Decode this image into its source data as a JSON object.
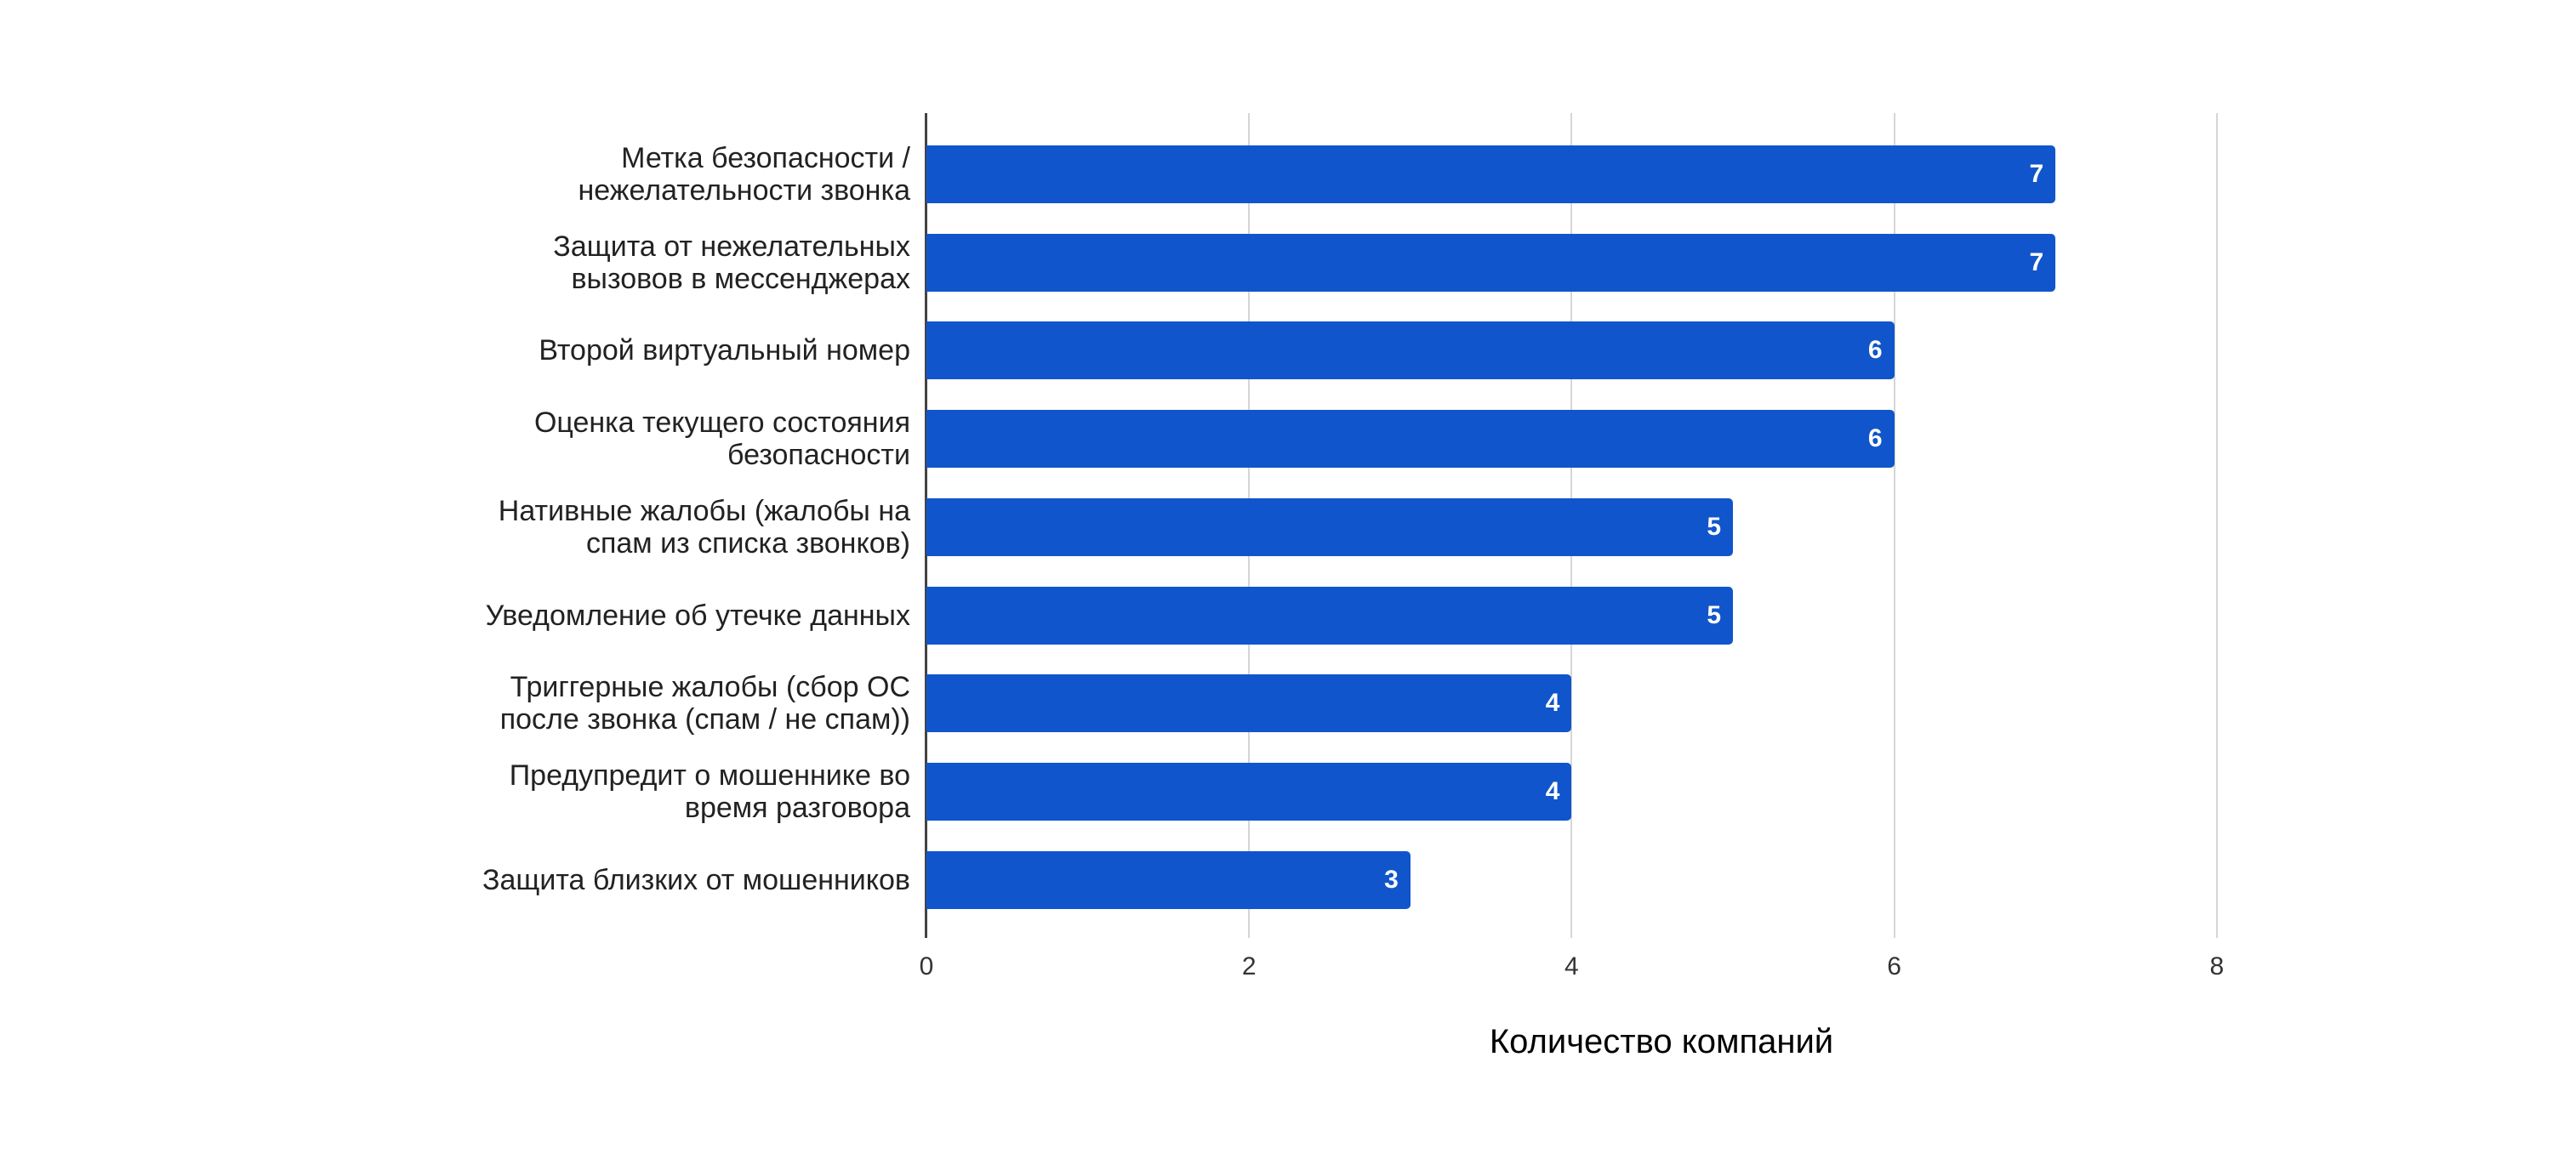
{
  "chart_data": {
    "type": "bar",
    "orientation": "horizontal",
    "title": "",
    "xlabel": "Количество компаний",
    "ylabel": "",
    "xlim": [
      0,
      8
    ],
    "x_ticks": [
      "0",
      "2",
      "4",
      "6",
      "8"
    ],
    "grid": true,
    "legend": null,
    "bar_color": "#1155cc",
    "categories": [
      "Метка безопасности / нежелательности звонка",
      "Защита от нежелательных вызовов в мессенджерах",
      "Второй виртуальный номер",
      "Оценка текущего состояния безопасности",
      "Нативные жалобы (жалобы на спам из списка звонков)",
      "Уведомление об утечке данных",
      "Триггерные жалобы (сбор ОС после звонка (спам / не спам))",
      "Предупредит о мошеннике во время разговора",
      "Защита близких от мошенников"
    ],
    "values": [
      7,
      7,
      6,
      6,
      5,
      5,
      4,
      4,
      3
    ]
  },
  "labels": [
    [
      "Метка безопасности /",
      "нежелательности звонка"
    ],
    [
      "Защита от нежелательных",
      "вызовов в мессенджерах"
    ],
    [
      "Второй виртуальный номер"
    ],
    [
      "Оценка текущего состояния",
      "безопасности"
    ],
    [
      "Нативные жалобы (жалобы на",
      "спам из списка звонков)"
    ],
    [
      "Уведомление об утечке данных"
    ],
    [
      "Триггерные жалобы (сбор ОС",
      "после звонка (спам / не спам))"
    ],
    [
      "Предупредит о мошеннике во",
      "время разговора"
    ],
    [
      "Защита близких от мошенников"
    ]
  ]
}
